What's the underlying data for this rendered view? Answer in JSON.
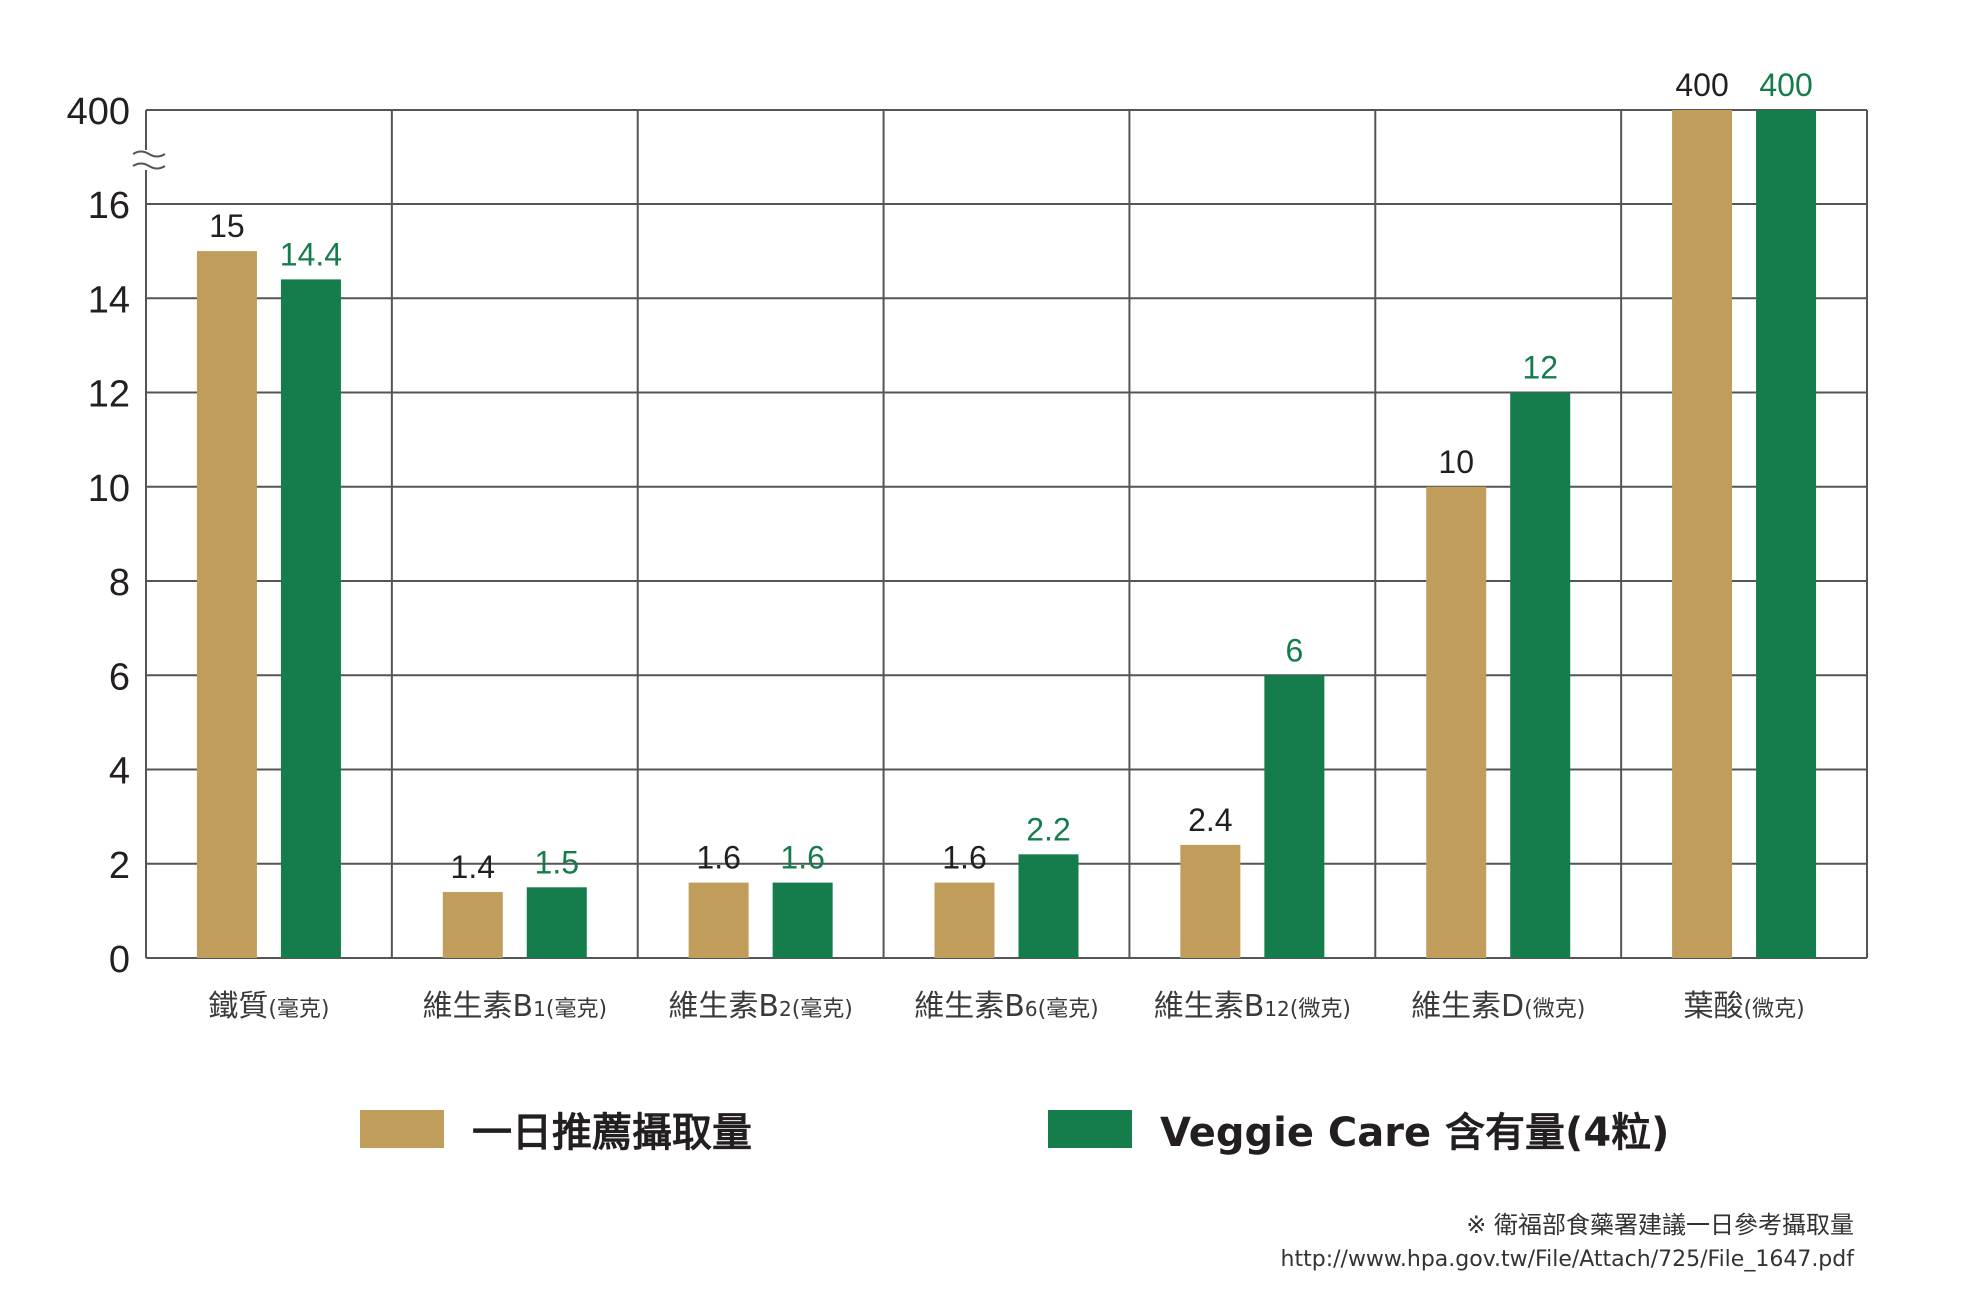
{
  "colors": {
    "recommended": "#c19d5b",
    "veggie": "#157c4b",
    "grid": "#555555",
    "text": "#231f20"
  },
  "chart_data": {
    "type": "bar",
    "categories": [
      {
        "main": "鐵質",
        "sub": "",
        "unit": "(毫克)"
      },
      {
        "main": "維生素B",
        "sub": "1",
        "unit": "(毫克)"
      },
      {
        "main": "維生素B",
        "sub": "2",
        "unit": "(毫克)"
      },
      {
        "main": "維生素B",
        "sub": "6",
        "unit": "(毫克)"
      },
      {
        "main": "維生素B",
        "sub": "12",
        "unit": "(微克)"
      },
      {
        "main": "維生素D",
        "sub": "",
        "unit": "(微克)"
      },
      {
        "main": "葉酸",
        "sub": "",
        "unit": "(微克)"
      }
    ],
    "series": [
      {
        "name": "一日推薦攝取量",
        "color": "#c19d5b",
        "label_color": "#231f20",
        "values": [
          15,
          1.4,
          1.6,
          1.6,
          2.4,
          10,
          400
        ],
        "labels": [
          "15",
          "1.4",
          "1.6",
          "1.6",
          "2.4",
          "10",
          "400"
        ]
      },
      {
        "name": "Veggie Care 含有量(4粒)",
        "color": "#157c4b",
        "label_color": "#157c4b",
        "values": [
          14.4,
          1.5,
          1.6,
          2.2,
          6,
          12,
          400
        ],
        "labels": [
          "14.4",
          "1.5",
          "1.6",
          "2.2",
          "6",
          "12",
          "400"
        ]
      }
    ],
    "y_ticks": [
      "0",
      "2",
      "4",
      "6",
      "8",
      "10",
      "12",
      "14",
      "16",
      "400"
    ],
    "axis_break": "between 16 and 400",
    "ylim": [
      0,
      16
    ],
    "grid": true,
    "legend_position": "bottom"
  },
  "footnote": {
    "line1": "※ 衛福部食藥署建議一日參考攝取量",
    "line2": "http://www.hpa.gov.tw/File/Attach/725/File_1647.pdf"
  }
}
